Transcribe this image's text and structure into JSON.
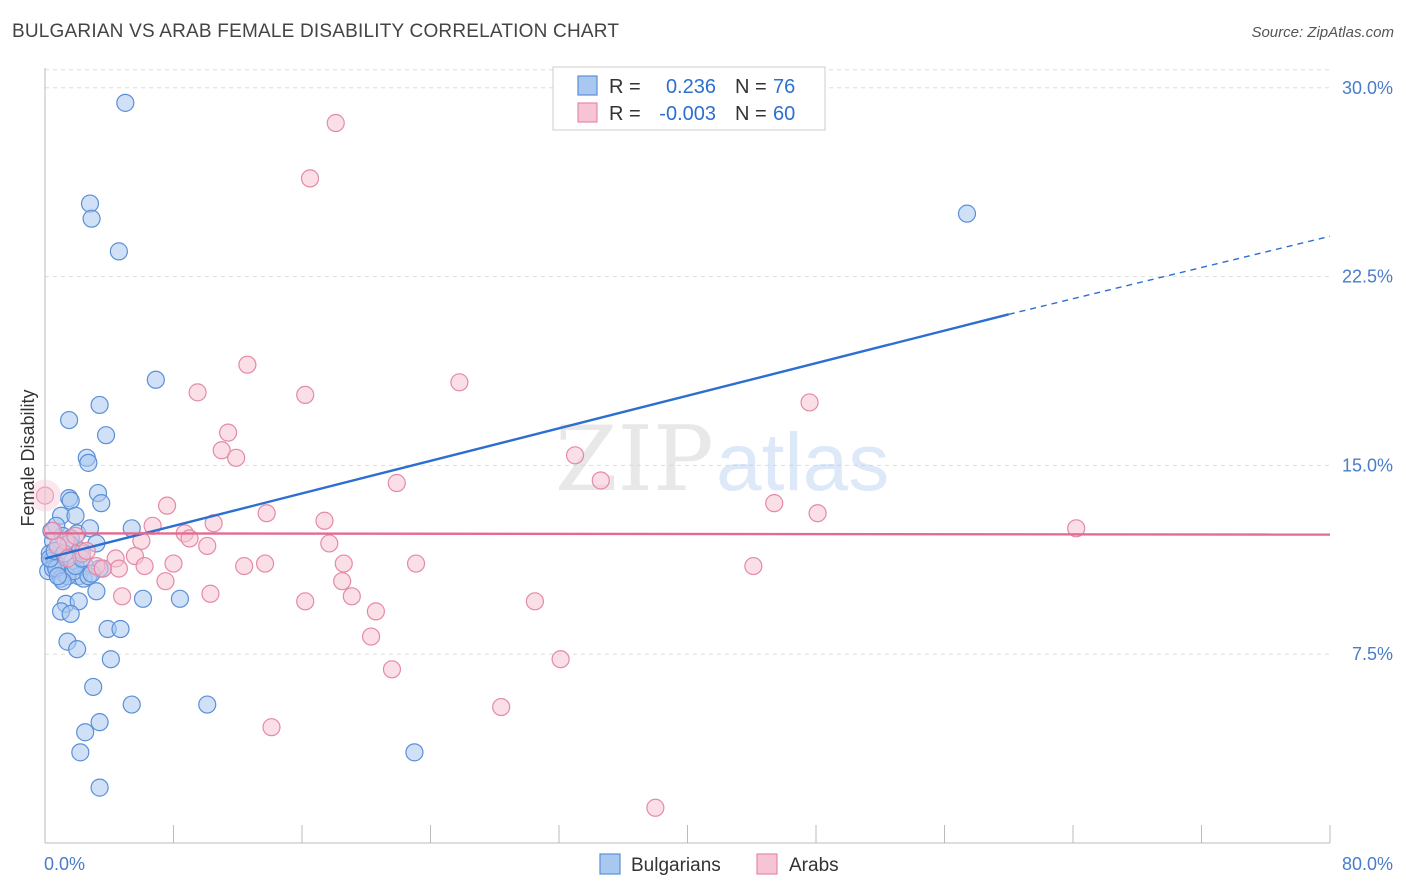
{
  "title": "BULGARIAN VS ARAB FEMALE DISABILITY CORRELATION CHART",
  "source": "Source: ZipAtlas.com",
  "watermark": {
    "part1": "ZIP",
    "part2": "atlas"
  },
  "legend": {
    "rows": [
      {
        "r_label": "R =",
        "r_value": "0.236",
        "n_label": "N =",
        "n_value": "76"
      },
      {
        "r_label": "R =",
        "r_value": "-0.003",
        "n_label": "N =",
        "n_value": "60"
      }
    ]
  },
  "bottom_legend": [
    "Bulgarians",
    "Arabs"
  ],
  "colors": {
    "bulgarians_fill": "#a9c8f0",
    "bulgarians_stroke": "#5b8fd8",
    "bulgarians_line": "#2c6fd1",
    "arabs_fill": "#f6c4d4",
    "arabs_stroke": "#e589a8",
    "arabs_line": "#e56a92",
    "tick_text": "#4a7cc9",
    "grid": "#dddddd"
  },
  "chart_data": {
    "type": "scatter",
    "title": "BULGARIAN VS ARAB FEMALE DISABILITY CORRELATION CHART",
    "xlabel": "",
    "ylabel": "Female Disability",
    "xlim": [
      0,
      80
    ],
    "ylim": [
      0,
      31.5
    ],
    "x_tick_labels": [
      "0.0%",
      "80.0%"
    ],
    "y_ticks": [
      7.5,
      15.0,
      22.5,
      30.0
    ],
    "y_tick_labels": [
      "7.5%",
      "15.0%",
      "22.5%",
      "30.0%"
    ],
    "series": [
      {
        "name": "Bulgarians",
        "r": 0.236,
        "n": 76,
        "trend": {
          "x0": 0,
          "y0": 11.3,
          "x1": 60,
          "y1": 21.0,
          "dashed_to_x": 80,
          "dashed_to_y": 24.1
        },
        "points": [
          [
            5.0,
            29.4
          ],
          [
            2.8,
            25.4
          ],
          [
            2.9,
            24.8
          ],
          [
            4.6,
            23.5
          ],
          [
            57.4,
            25.0
          ],
          [
            6.9,
            18.4
          ],
          [
            3.4,
            17.4
          ],
          [
            1.5,
            16.8
          ],
          [
            3.8,
            16.2
          ],
          [
            2.6,
            15.3
          ],
          [
            2.7,
            15.1
          ],
          [
            1.5,
            13.7
          ],
          [
            3.3,
            13.9
          ],
          [
            3.5,
            13.5
          ],
          [
            1.6,
            13.6
          ],
          [
            1.0,
            13.0
          ],
          [
            1.9,
            13.0
          ],
          [
            0.7,
            12.6
          ],
          [
            2.0,
            12.3
          ],
          [
            2.8,
            12.5
          ],
          [
            5.4,
            12.5
          ],
          [
            0.5,
            12.0
          ],
          [
            1.1,
            12.2
          ],
          [
            1.6,
            12.1
          ],
          [
            3.2,
            11.9
          ],
          [
            0.3,
            11.5
          ],
          [
            0.8,
            11.8
          ],
          [
            1.3,
            11.4
          ],
          [
            2.2,
            11.6
          ],
          [
            0.4,
            11.2
          ],
          [
            0.9,
            11.0
          ],
          [
            1.7,
            11.2
          ],
          [
            2.5,
            11.0
          ],
          [
            0.2,
            10.8
          ],
          [
            0.6,
            11.1
          ],
          [
            1.2,
            10.7
          ],
          [
            2.1,
            10.6
          ],
          [
            3.6,
            10.9
          ],
          [
            0.5,
            10.9
          ],
          [
            1.0,
            10.5
          ],
          [
            1.4,
            10.6
          ],
          [
            2.4,
            10.5
          ],
          [
            0.7,
            10.9
          ],
          [
            1.8,
            10.8
          ],
          [
            3.4,
            10.9
          ],
          [
            0.3,
            11.3
          ],
          [
            1.1,
            10.4
          ],
          [
            2.7,
            10.6
          ],
          [
            3.2,
            10.0
          ],
          [
            1.3,
            9.5
          ],
          [
            2.1,
            9.6
          ],
          [
            6.1,
            9.7
          ],
          [
            8.4,
            9.7
          ],
          [
            1.0,
            9.2
          ],
          [
            1.6,
            9.1
          ],
          [
            3.9,
            8.5
          ],
          [
            4.7,
            8.5
          ],
          [
            1.4,
            8.0
          ],
          [
            2.0,
            7.7
          ],
          [
            4.1,
            7.3
          ],
          [
            3.0,
            6.2
          ],
          [
            5.4,
            5.5
          ],
          [
            10.1,
            5.5
          ],
          [
            3.4,
            4.8
          ],
          [
            2.5,
            4.4
          ],
          [
            2.2,
            3.6
          ],
          [
            23.0,
            3.6
          ],
          [
            3.4,
            2.2
          ],
          [
            0.6,
            11.6
          ],
          [
            1.9,
            11.0
          ],
          [
            2.9,
            10.7
          ],
          [
            0.4,
            12.4
          ],
          [
            1.5,
            11.9
          ],
          [
            0.8,
            10.6
          ],
          [
            2.3,
            11.3
          ],
          [
            1.2,
            11.5
          ]
        ]
      },
      {
        "name": "Arabs",
        "r": -0.003,
        "n": 60,
        "trend": {
          "x0": 0,
          "y0": 12.3,
          "x1": 80,
          "y1": 12.25
        },
        "points": [
          [
            18.1,
            28.6
          ],
          [
            16.5,
            26.4
          ],
          [
            12.6,
            19.0
          ],
          [
            9.5,
            17.9
          ],
          [
            16.2,
            17.8
          ],
          [
            25.8,
            18.3
          ],
          [
            47.6,
            17.5
          ],
          [
            11.4,
            16.3
          ],
          [
            11.0,
            15.6
          ],
          [
            11.9,
            15.3
          ],
          [
            33.0,
            15.4
          ],
          [
            21.9,
            14.3
          ],
          [
            34.6,
            14.4
          ],
          [
            0.0,
            13.8
          ],
          [
            7.6,
            13.4
          ],
          [
            45.4,
            13.5
          ],
          [
            13.8,
            13.1
          ],
          [
            48.1,
            13.1
          ],
          [
            6.7,
            12.6
          ],
          [
            10.5,
            12.7
          ],
          [
            17.4,
            12.8
          ],
          [
            64.2,
            12.5
          ],
          [
            8.7,
            12.3
          ],
          [
            9.0,
            12.1
          ],
          [
            1.3,
            12.0
          ],
          [
            6.0,
            12.0
          ],
          [
            10.1,
            11.8
          ],
          [
            17.7,
            11.9
          ],
          [
            2.3,
            11.5
          ],
          [
            4.4,
            11.3
          ],
          [
            5.6,
            11.4
          ],
          [
            8.0,
            11.1
          ],
          [
            13.7,
            11.1
          ],
          [
            18.6,
            11.1
          ],
          [
            23.1,
            11.1
          ],
          [
            44.1,
            11.0
          ],
          [
            12.4,
            11.0
          ],
          [
            3.2,
            11.0
          ],
          [
            4.6,
            10.9
          ],
          [
            7.5,
            10.4
          ],
          [
            18.5,
            10.4
          ],
          [
            0.8,
            11.8
          ],
          [
            1.9,
            12.2
          ],
          [
            4.8,
            9.8
          ],
          [
            10.3,
            9.9
          ],
          [
            16.2,
            9.6
          ],
          [
            19.1,
            9.8
          ],
          [
            30.5,
            9.6
          ],
          [
            20.6,
            9.2
          ],
          [
            20.3,
            8.2
          ],
          [
            32.1,
            7.3
          ],
          [
            21.6,
            6.9
          ],
          [
            28.4,
            5.4
          ],
          [
            14.1,
            4.6
          ],
          [
            38.0,
            1.4
          ],
          [
            2.6,
            11.6
          ],
          [
            3.6,
            10.9
          ],
          [
            0.5,
            12.4
          ],
          [
            6.2,
            11.0
          ],
          [
            1.4,
            11.3
          ]
        ]
      }
    ]
  }
}
